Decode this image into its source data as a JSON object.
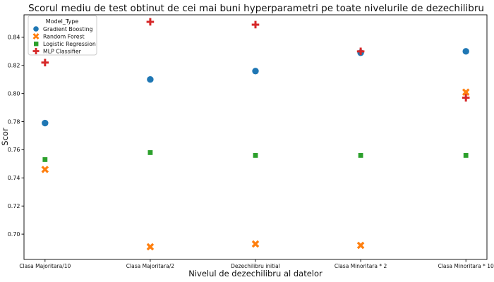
{
  "chart_data": {
    "type": "scatter",
    "title": "Scorul mediu de test obtinut de cei mai buni hyperparametri pe toate nivelurile de dezechilibru",
    "xlabel": "Nivelul de dezechilibru al datelor",
    "ylabel": "Scor",
    "legend_title": "Model_Type",
    "legend_position": "upper left",
    "grid": false,
    "categories": [
      "Clasa Majoritara/10",
      "Clasa Majoritara/2",
      "Dezechilibru initial",
      "Clasa Minoritara * 2",
      "Clasa Minoritara * 10"
    ],
    "ylim": [
      0.682,
      0.856
    ],
    "yticks": [
      0.7,
      0.72,
      0.74,
      0.76,
      0.78,
      0.8,
      0.82,
      0.84
    ],
    "series": [
      {
        "name": "Gradient Boosting",
        "marker": "circle",
        "color": "#1f77b4",
        "values": [
          0.779,
          0.81,
          0.816,
          0.829,
          0.83
        ]
      },
      {
        "name": "Random Forest",
        "marker": "x",
        "color": "#ff7f0e",
        "values": [
          0.746,
          0.691,
          0.693,
          0.692,
          0.801
        ]
      },
      {
        "name": "Logistic Regression",
        "marker": "square",
        "color": "#2ca02c",
        "values": [
          0.753,
          0.758,
          0.756,
          0.756,
          0.756
        ]
      },
      {
        "name": "MLP Classifier",
        "marker": "plus",
        "color": "#d62728",
        "values": [
          0.822,
          0.851,
          0.849,
          0.83,
          0.797
        ]
      }
    ]
  }
}
